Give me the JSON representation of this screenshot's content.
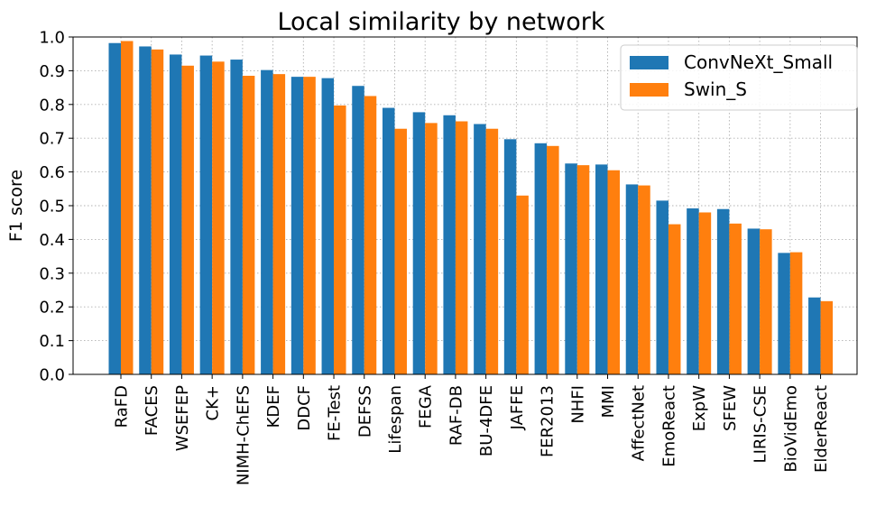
{
  "chart_data": {
    "type": "bar",
    "title": "Local similarity by network",
    "xlabel": "",
    "ylabel": "F1 score",
    "ylim": [
      0,
      1.0
    ],
    "yticks": [
      "0.0",
      "0.1",
      "0.2",
      "0.3",
      "0.4",
      "0.5",
      "0.6",
      "0.7",
      "0.8",
      "0.9",
      "1.0"
    ],
    "grid": true,
    "legend_position": "top-right",
    "categories": [
      "RaFD",
      "FACES",
      "WSEFEP",
      "CK+",
      "NIMH-ChEFS",
      "KDEF",
      "DDCF",
      "FE-Test",
      "DEFSS",
      "Lifespan",
      "FEGA",
      "RAF-DB",
      "BU-4DFE",
      "JAFFE",
      "FER2013",
      "NHFI",
      "MMI",
      "AffectNet",
      "EmoReact",
      "ExpW",
      "SFEW",
      "LIRIS-CSE",
      "BioVidEmo",
      "ElderReact"
    ],
    "series": [
      {
        "name": "ConvNeXt_Small",
        "color": "#1f77b4",
        "values": [
          0.982,
          0.972,
          0.948,
          0.945,
          0.933,
          0.902,
          0.882,
          0.878,
          0.855,
          0.79,
          0.777,
          0.768,
          0.742,
          0.697,
          0.685,
          0.625,
          0.622,
          0.563,
          0.515,
          0.492,
          0.49,
          0.432,
          0.36,
          0.228
        ]
      },
      {
        "name": "Swin_S",
        "color": "#ff7f0e",
        "values": [
          0.988,
          0.963,
          0.915,
          0.927,
          0.885,
          0.89,
          0.882,
          0.797,
          0.825,
          0.728,
          0.745,
          0.75,
          0.728,
          0.53,
          0.677,
          0.62,
          0.605,
          0.56,
          0.445,
          0.48,
          0.447,
          0.43,
          0.362,
          0.217
        ]
      }
    ]
  }
}
